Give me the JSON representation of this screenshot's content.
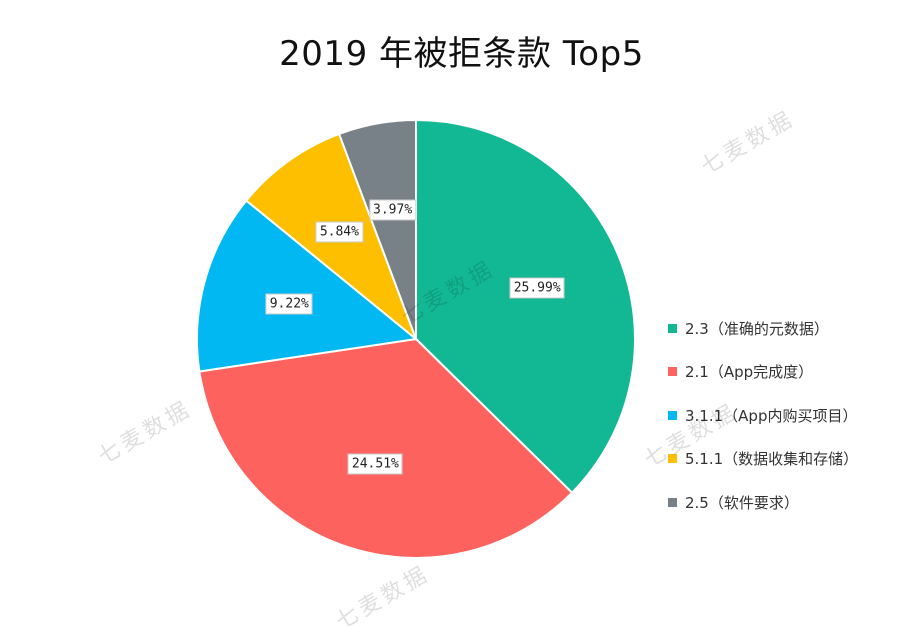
{
  "chart_data": {
    "type": "pie",
    "title": "2019 年被拒条款 Top5",
    "slices": [
      {
        "label": "2.3（准确的元数据）",
        "value": 25.99,
        "value_label": "25.99%",
        "color": "#12B894"
      },
      {
        "label": "2.1（App完成度）",
        "value": 24.51,
        "value_label": "24.51%",
        "color": "#FD625E"
      },
      {
        "label": "3.1.1（App内购买项目）",
        "value": 9.22,
        "value_label": "9.22%",
        "color": "#01B8F2"
      },
      {
        "label": "5.1.1（数据收集和存储）",
        "value": 5.84,
        "value_label": "5.84%",
        "color": "#FDBF00"
      },
      {
        "label": "2.5（软件要求）",
        "value": 3.97,
        "value_label": "3.97%",
        "color": "#788088"
      }
    ],
    "legend_position": "right"
  },
  "watermark": "七麦数据"
}
